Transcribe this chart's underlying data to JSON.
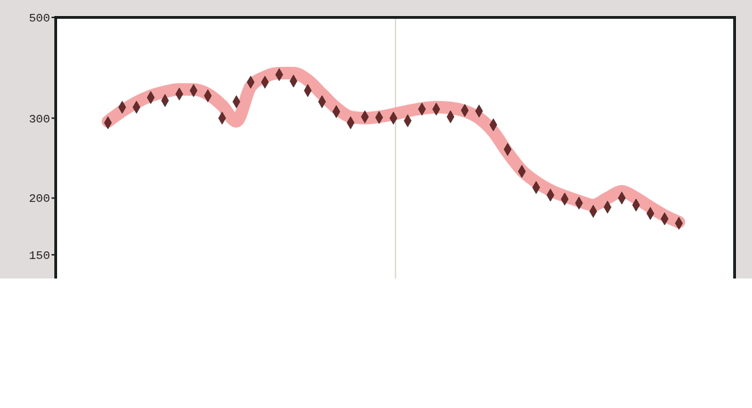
{
  "chart_data": {
    "type": "scatter",
    "categories": [
      null,
      null,
      null,
      null,
      null,
      null,
      null,
      null,
      null,
      null,
      null,
      null,
      null,
      null,
      null,
      null,
      null,
      null,
      null,
      null,
      null,
      null,
      null,
      null,
      null,
      null,
      null,
      null,
      null,
      null,
      null,
      null,
      null,
      null,
      null,
      null,
      null,
      null,
      null,
      null,
      null
    ],
    "series": [
      {
        "type": "line",
        "color": "#f4a6a6",
        "marker": "none",
        "values": [
          295,
          311,
          325,
          336,
          343,
          347,
          347,
          339,
          320,
          295,
          352,
          370,
          377,
          377,
          364,
          339,
          316,
          302,
          300,
          302,
          306,
          311,
          315,
          317,
          316,
          311,
          300,
          280,
          252,
          230,
          217,
          208,
          202,
          197,
          193,
          200,
          207,
          200,
          191,
          183,
          177
        ]
      },
      {
        "color": "#6b2a2a",
        "marker": "diamond",
        "values": [
          293,
          317,
          317,
          333,
          328,
          339,
          345,
          336,
          300,
          326,
          360,
          360,
          374,
          362,
          345,
          326,
          310,
          293,
          302,
          301,
          300,
          296,
          314,
          314,
          302,
          312,
          311,
          290,
          256,
          229,
          211,
          203,
          199,
          195,
          187,
          191,
          200,
          193,
          185,
          180,
          176
        ]
      }
    ],
    "ylim": [
      133,
      500
    ],
    "yticks": [
      150,
      200,
      300,
      500
    ],
    "log": true,
    "grid": false,
    "tick_labels": "y"
  }
}
